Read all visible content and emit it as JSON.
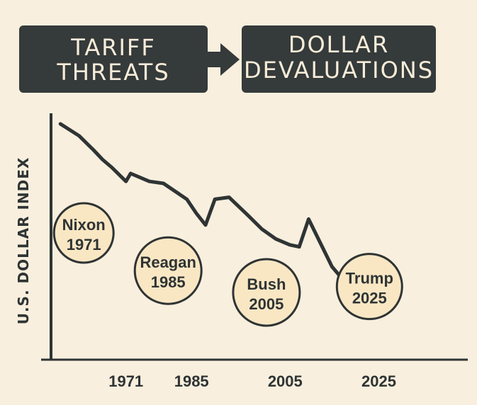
{
  "header": {
    "left_box_lines": [
      "TARIFF",
      "THREATS"
    ],
    "right_box_lines": [
      "DOLLAR",
      "DEVALUATIONS"
    ]
  },
  "colors": {
    "background": "#f9efde",
    "box_fill": "#353a3a",
    "box_text": "#f7ecd9",
    "line": "#2f3434",
    "bubble_fill": "#f9e7c4"
  },
  "chart_data": {
    "type": "line",
    "title": "",
    "xlabel": "",
    "ylabel": "U.S. DOLLAR INDEX",
    "xlim": [
      1955,
      2044
    ],
    "ylim": [
      0,
      100
    ],
    "x_ticks": [
      "1971",
      "1985",
      "2005",
      "2025"
    ],
    "x_tick_values": [
      1971,
      1985,
      2005,
      2025
    ],
    "series": [
      {
        "name": "U.S. Dollar Index",
        "x": [
          1957,
          1961,
          1964,
          1966,
          1968,
          1971,
          1972,
          1976,
          1979,
          1984,
          1986,
          1988,
          1990,
          1993,
          1997,
          2000,
          2003,
          2006,
          2008,
          2010,
          2015,
          2020
        ],
        "y": [
          100,
          94,
          87,
          82,
          78,
          71,
          75,
          71,
          70,
          62,
          55,
          49,
          62,
          63,
          54,
          47,
          42,
          39,
          38,
          52,
          28,
          14
        ]
      }
    ],
    "annotations": [
      {
        "lines": [
          "Nixon",
          "1971"
        ],
        "x": 1962,
        "y": 45
      },
      {
        "lines": [
          "Reagan",
          "1985"
        ],
        "x": 1980,
        "y": 26
      },
      {
        "lines": [
          "Bush",
          "2005"
        ],
        "x": 2001,
        "y": 15
      },
      {
        "lines": [
          "Trump",
          "2025"
        ],
        "x": 2023,
        "y": 18
      }
    ]
  }
}
